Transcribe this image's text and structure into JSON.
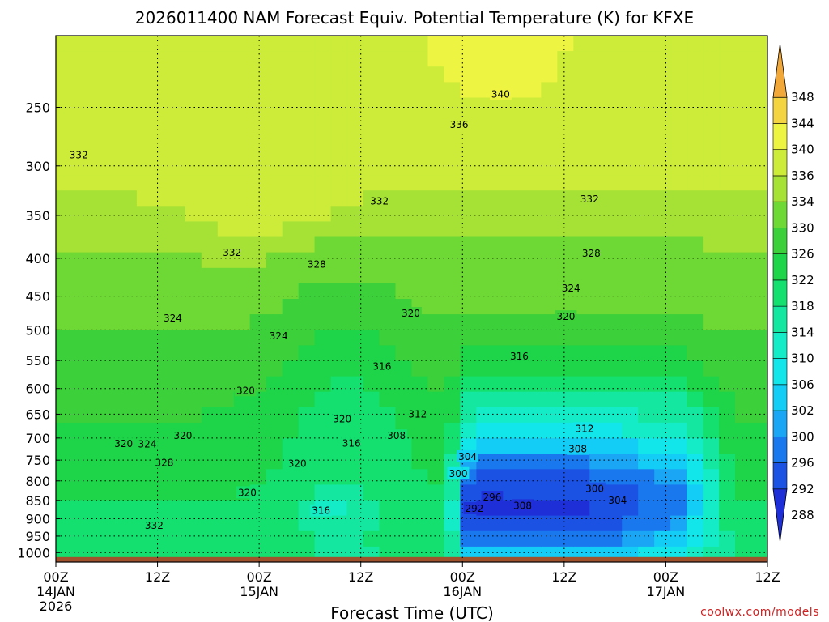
{
  "chart_data": {
    "type": "heatmap",
    "title": "2026011400 NAM Forecast Equiv. Potential Temperature (K) for KFXE",
    "xlabel": "Forecast Time (UTC)",
    "ylabel": "",
    "x_hours_range": [
      0,
      84
    ],
    "x_ticks": [
      {
        "hour": 0,
        "label": "00Z",
        "date": "14JAN",
        "year": "2026"
      },
      {
        "hour": 12,
        "label": "12Z",
        "date": "",
        "year": ""
      },
      {
        "hour": 24,
        "label": "00Z",
        "date": "15JAN",
        "year": ""
      },
      {
        "hour": 36,
        "label": "12Z",
        "date": "",
        "year": ""
      },
      {
        "hour": 48,
        "label": "00Z",
        "date": "16JAN",
        "year": ""
      },
      {
        "hour": 60,
        "label": "12Z",
        "date": "",
        "year": ""
      },
      {
        "hour": 72,
        "label": "00Z",
        "date": "17JAN",
        "year": ""
      },
      {
        "hour": 84,
        "label": "12Z",
        "date": "",
        "year": ""
      }
    ],
    "y_pressure_range_hpa": [
      200,
      1030
    ],
    "y_ticks": [
      250,
      300,
      350,
      400,
      450,
      500,
      550,
      600,
      650,
      700,
      750,
      800,
      850,
      900,
      950,
      1000
    ],
    "colorbar": {
      "levels": [
        288,
        292,
        296,
        300,
        302,
        306,
        310,
        314,
        318,
        322,
        326,
        330,
        334,
        336,
        340,
        344,
        348
      ],
      "colors": [
        "#1f2fd8",
        "#1c52e4",
        "#1a78ee",
        "#1aa6f4",
        "#14cdf6",
        "#12e6ea",
        "#14ecc8",
        "#14e8a0",
        "#14e070",
        "#1ed448",
        "#3cd03a",
        "#6ed834",
        "#a6e236",
        "#cdec3a",
        "#eef442",
        "#f4d440",
        "#f2a838"
      ],
      "extend": "both"
    },
    "contour_labels": [
      {
        "hour": 2.7,
        "p": 290,
        "text": "332"
      },
      {
        "hour": 52.5,
        "p": 240,
        "text": "340"
      },
      {
        "hour": 47.6,
        "p": 264,
        "text": "336"
      },
      {
        "hour": 38.2,
        "p": 335,
        "text": "332"
      },
      {
        "hour": 63.0,
        "p": 333,
        "text": "332"
      },
      {
        "hour": 20.8,
        "p": 393,
        "text": "332"
      },
      {
        "hour": 30.8,
        "p": 408,
        "text": "328"
      },
      {
        "hour": 63.2,
        "p": 394,
        "text": "328"
      },
      {
        "hour": 60.8,
        "p": 439,
        "text": "324"
      },
      {
        "hour": 13.8,
        "p": 482,
        "text": "324"
      },
      {
        "hour": 26.3,
        "p": 510,
        "text": "324"
      },
      {
        "hour": 41.9,
        "p": 475,
        "text": "320"
      },
      {
        "hour": 60.2,
        "p": 480,
        "text": "320"
      },
      {
        "hour": 38.5,
        "p": 560,
        "text": "316"
      },
      {
        "hour": 54.7,
        "p": 543,
        "text": "316"
      },
      {
        "hour": 22.4,
        "p": 604,
        "text": "320"
      },
      {
        "hour": 33.8,
        "p": 660,
        "text": "320"
      },
      {
        "hour": 42.7,
        "p": 650,
        "text": "312"
      },
      {
        "hour": 62.4,
        "p": 680,
        "text": "312"
      },
      {
        "hour": 15.0,
        "p": 695,
        "text": "320"
      },
      {
        "hour": 8.0,
        "p": 713,
        "text": "320"
      },
      {
        "hour": 10.8,
        "p": 714,
        "text": "324"
      },
      {
        "hour": 40.2,
        "p": 695,
        "text": "308"
      },
      {
        "hour": 34.9,
        "p": 712,
        "text": "316"
      },
      {
        "hour": 48.6,
        "p": 742,
        "text": "304"
      },
      {
        "hour": 61.6,
        "p": 725,
        "text": "308"
      },
      {
        "hour": 12.8,
        "p": 756,
        "text": "328"
      },
      {
        "hour": 28.5,
        "p": 758,
        "text": "320"
      },
      {
        "hour": 47.5,
        "p": 782,
        "text": "300"
      },
      {
        "hour": 22.6,
        "p": 830,
        "text": "320"
      },
      {
        "hour": 51.5,
        "p": 842,
        "text": "296"
      },
      {
        "hour": 63.6,
        "p": 820,
        "text": "300"
      },
      {
        "hour": 55.1,
        "p": 864,
        "text": "308"
      },
      {
        "hour": 66.3,
        "p": 850,
        "text": "304"
      },
      {
        "hour": 49.4,
        "p": 872,
        "text": "292"
      },
      {
        "hour": 31.3,
        "p": 878,
        "text": "316"
      },
      {
        "hour": 11.6,
        "p": 920,
        "text": "332"
      }
    ]
  },
  "watermark": "coolwx.com/models"
}
